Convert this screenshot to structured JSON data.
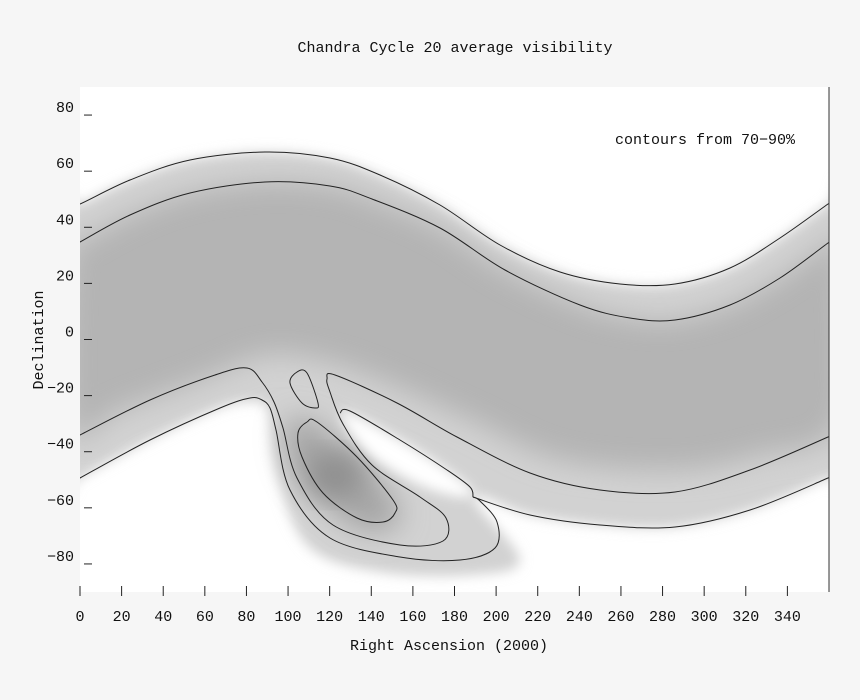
{
  "chart_data": {
    "type": "heatmap",
    "title": "Chandra Cycle 20 average visibility",
    "xlabel": "Right Ascension (2000)",
    "ylabel": "Declination",
    "annotation": "contours from 70−90%",
    "xlim": [
      0,
      360
    ],
    "ylim": [
      -90,
      90
    ],
    "xticks": [
      0,
      20,
      40,
      60,
      80,
      100,
      120,
      140,
      160,
      180,
      200,
      220,
      240,
      260,
      280,
      300,
      320,
      340
    ],
    "yticks": [
      80,
      60,
      40,
      20,
      0,
      -20,
      -40,
      -60,
      -80
    ],
    "ytick_labels": [
      "80",
      "60",
      "40",
      "20",
      "0",
      "−20",
      "−40",
      "−60",
      "−80"
    ],
    "contour_levels_percent": [
      70,
      90
    ],
    "colormap": "grayscale (white = low, dark gray = high)",
    "grid": false
  }
}
